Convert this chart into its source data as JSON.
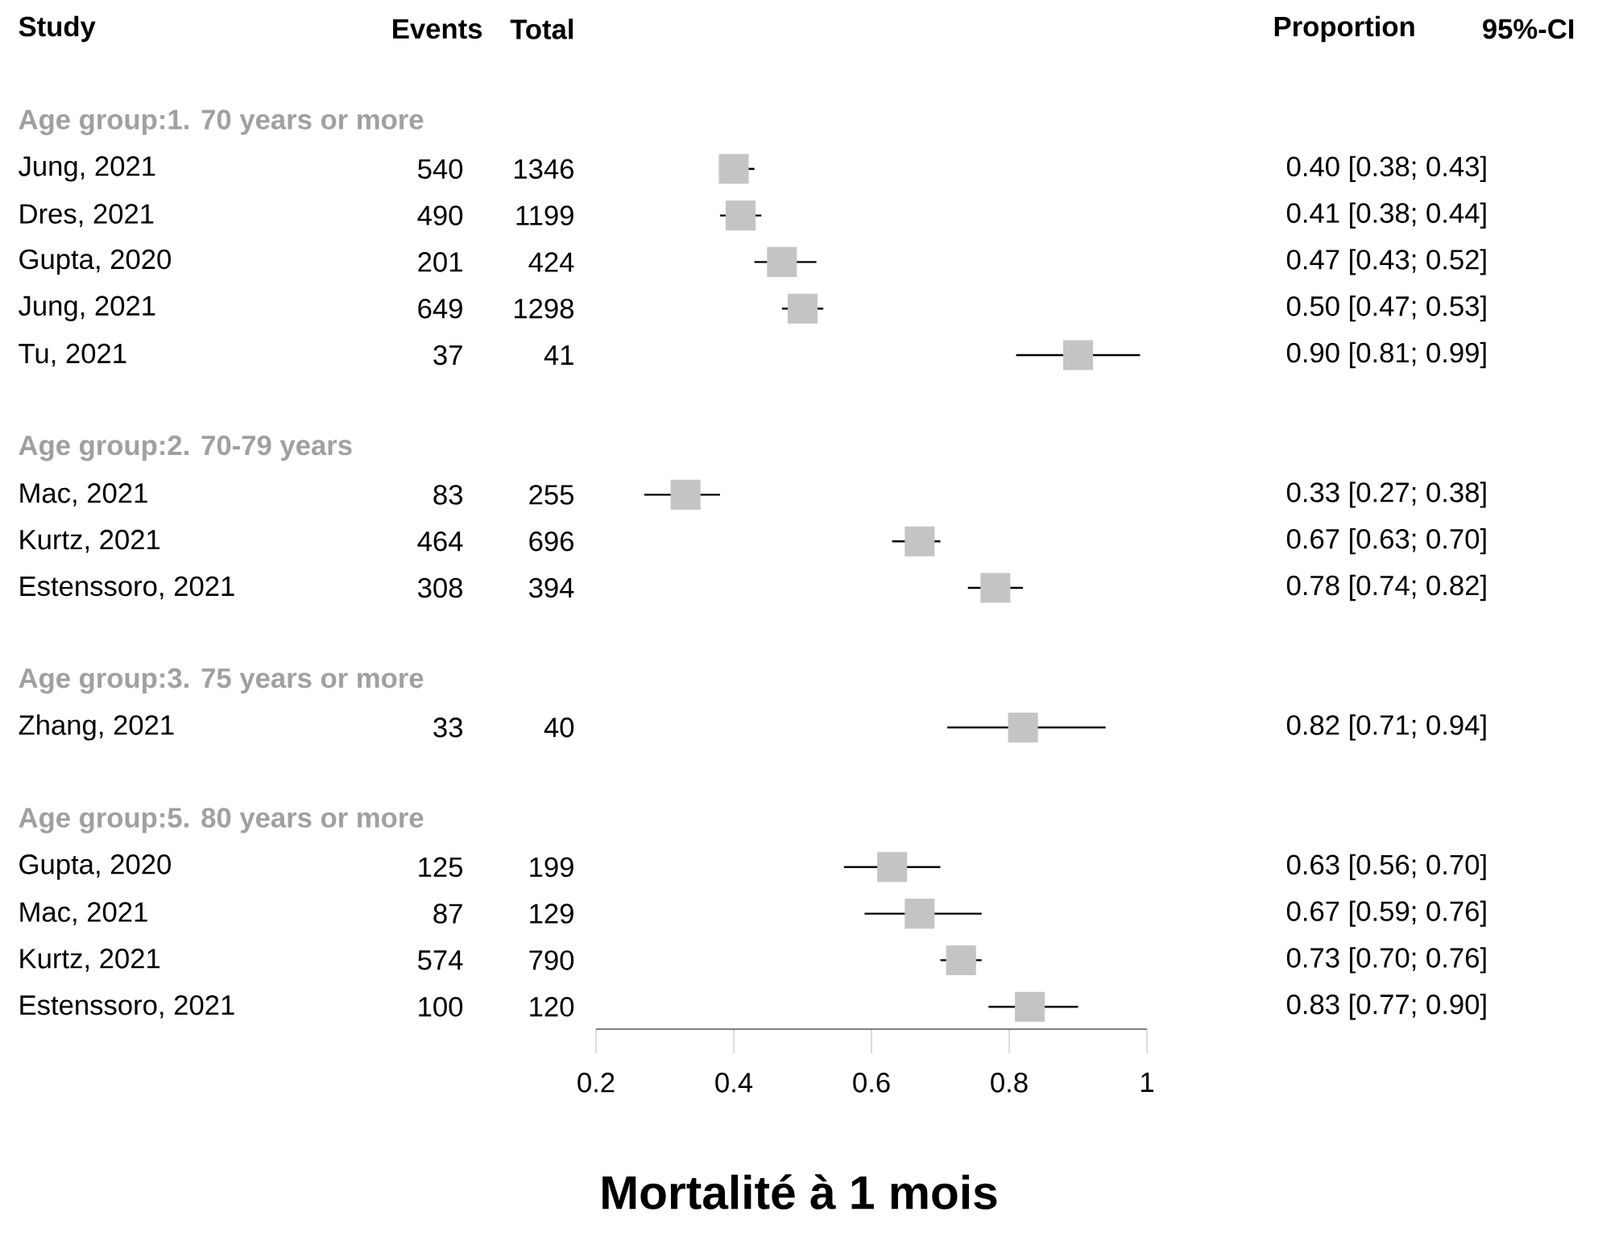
{
  "chart_data": {
    "type": "scatter",
    "orientation": "horizontal",
    "title": "Mortalité à 1 mois",
    "categories": [
      "Age group:1. 70 years or more",
      "Jung, 2021",
      "Dres, 2021",
      "Gupta, 2020",
      "Jung, 2021",
      "Tu, 2021",
      null,
      "Age group:2. 70-79 years",
      "Mac, 2021",
      "Kurtz, 2021",
      "Estenssoro, 2021",
      null,
      "Age group:3. 75 years or more",
      "Zhang, 2021",
      null,
      "Age group:5. 80 years or more",
      "Gupta, 2020",
      "Mac, 2021",
      "Kurtz, 2021",
      "Estenssoro, 2021"
    ],
    "values": [
      null,
      0.4,
      0.41,
      0.47,
      0.5,
      0.9,
      null,
      null,
      0.33,
      0.67,
      0.78,
      null,
      null,
      0.82,
      null,
      null,
      0.63,
      0.67,
      0.73,
      0.83
    ],
    "errors": [
      null,
      [
        0.38,
        0.43
      ],
      [
        0.38,
        0.44
      ],
      [
        0.43,
        0.52
      ],
      [
        0.47,
        0.53
      ],
      [
        0.81,
        0.99
      ],
      null,
      null,
      [
        0.27,
        0.38
      ],
      [
        0.63,
        0.7
      ],
      [
        0.74,
        0.82
      ],
      null,
      null,
      [
        0.71,
        0.94
      ],
      null,
      null,
      [
        0.56,
        0.7
      ],
      [
        0.59,
        0.76
      ],
      [
        0.7,
        0.76
      ],
      [
        0.77,
        0.9
      ]
    ],
    "value_labels": [
      null,
      "0.40 [0.38; 0.43]",
      "0.41 [0.38; 0.44]",
      "0.47 [0.43; 0.52]",
      "0.50 [0.47; 0.53]",
      "0.90 [0.81; 0.99]",
      null,
      null,
      "0.33 [0.27; 0.38]",
      "0.67 [0.63; 0.70]",
      "0.78 [0.74; 0.82]",
      null,
      null,
      "0.82 [0.71; 0.94]",
      null,
      null,
      "0.63 [0.56; 0.70]",
      "0.67 [0.59; 0.76]",
      "0.73 [0.70; 0.76]",
      "0.83 [0.77; 0.90]"
    ],
    "annotations": [
      "Study",
      "Events",
      "Total",
      "Proportion",
      "95%-CI",
      "540",
      "1346",
      "490",
      "1199",
      "201",
      "424",
      "649",
      "1298",
      "37",
      "41",
      "83",
      "255",
      "464",
      "696",
      "308",
      "394",
      "33",
      "40",
      "125",
      "199",
      "87",
      "129",
      "574",
      "790",
      "100",
      "120"
    ],
    "color": "#c4c4c4",
    "marker": "square",
    "tick_labels": "x",
    "grid": false,
    "xlim": [
      0.2,
      1
    ],
    "xticks": [
      0.2,
      0.4,
      0.6,
      0.8,
      1
    ]
  }
}
